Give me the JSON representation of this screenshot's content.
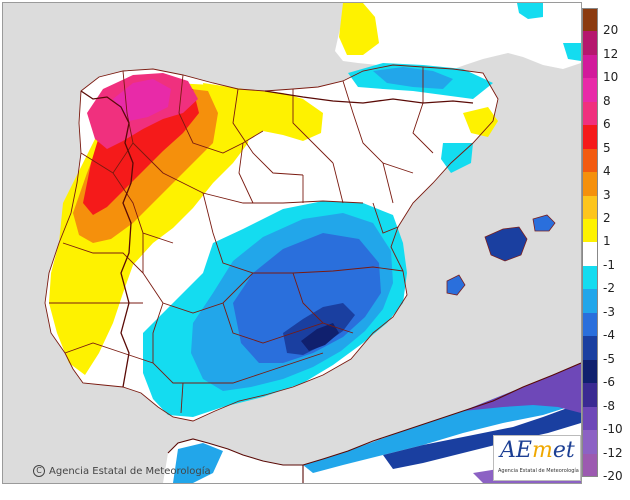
{
  "map": {
    "copyright": "Agencia Estatal de Meteorología",
    "copyright_symbol": "C",
    "logo": {
      "word_a": "AE",
      "word_e": "m",
      "word_b": "et",
      "subtitle": "Agencia Estatal de Meteorología"
    }
  },
  "legend": {
    "items": [
      {
        "label": "20",
        "color": "#8b3a0f"
      },
      {
        "label": "12",
        "color": "#b5176e"
      },
      {
        "label": "10",
        "color": "#d21a9b"
      },
      {
        "label": "8",
        "color": "#e82aa8"
      },
      {
        "label": "6",
        "color": "#f0307e"
      },
      {
        "label": "5",
        "color": "#f51a1a"
      },
      {
        "label": "4",
        "color": "#f25a10"
      },
      {
        "label": "3",
        "color": "#f5900c"
      },
      {
        "label": "2",
        "color": "#fdc51c"
      },
      {
        "label": "1",
        "color": "#fef200"
      },
      {
        "label": "-1",
        "color": "#ffffff"
      },
      {
        "label": "-2",
        "color": "#14dcf0"
      },
      {
        "label": "-3",
        "color": "#22a6ea"
      },
      {
        "label": "-4",
        "color": "#2a6fdc"
      },
      {
        "label": "-5",
        "color": "#1a3fa0"
      },
      {
        "label": "-6",
        "color": "#10206e"
      },
      {
        "label": "-8",
        "color": "#3a2a92"
      },
      {
        "label": "-10",
        "color": "#6e48b8"
      },
      {
        "label": "-12",
        "color": "#8c62c4"
      },
      {
        "label": "-20",
        "color": "#9c5ab0"
      }
    ]
  }
}
